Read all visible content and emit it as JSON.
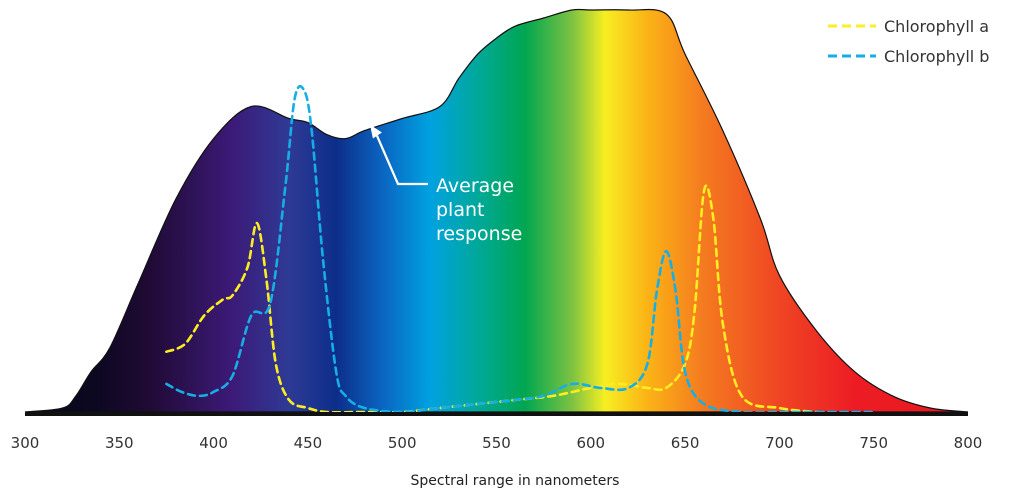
{
  "chart_data": {
    "type": "area",
    "xlabel": "Spectral range in nanometers",
    "ylabel": "",
    "xlim": [
      300,
      800
    ],
    "ylim": [
      0,
      1
    ],
    "grid": false,
    "x_ticks": [
      "300",
      "350",
      "400",
      "450",
      "500",
      "550",
      "600",
      "650",
      "700",
      "750",
      "800"
    ],
    "legend_position": "top-right",
    "annotation": {
      "lines": [
        "Average",
        "plant",
        "response"
      ],
      "points_to_x": 485,
      "points_to_y": 0.73
    },
    "series": [
      {
        "name": "",
        "kind": "filled-area",
        "x": [
          300,
          320,
          327,
          335,
          345,
          360,
          380,
          400,
          420,
          440,
          450,
          460,
          470,
          480,
          500,
          520,
          530,
          540,
          550,
          560,
          575,
          590,
          600,
          620,
          640,
          650,
          670,
          690,
          700,
          720,
          740,
          760,
          780,
          800
        ],
        "y": [
          0.0,
          0.01,
          0.04,
          0.1,
          0.16,
          0.32,
          0.53,
          0.68,
          0.76,
          0.73,
          0.72,
          0.69,
          0.68,
          0.7,
          0.73,
          0.76,
          0.83,
          0.89,
          0.93,
          0.96,
          0.98,
          1.0,
          1.0,
          1.0,
          0.99,
          0.89,
          0.7,
          0.48,
          0.34,
          0.2,
          0.1,
          0.04,
          0.01,
          0.0
        ]
      },
      {
        "name": "Chlorophyll a",
        "kind": "line",
        "color": "#fdee21",
        "x": [
          375,
          385,
          395,
          405,
          410,
          418,
          423,
          428,
          433,
          440,
          450,
          460,
          480,
          500,
          520,
          540,
          560,
          580,
          600,
          615,
          630,
          640,
          650,
          655,
          660,
          665,
          670,
          680,
          700,
          720
        ],
        "y": [
          0.15,
          0.17,
          0.24,
          0.28,
          0.29,
          0.36,
          0.47,
          0.33,
          0.12,
          0.03,
          0.01,
          0.0,
          0.0,
          0.0,
          0.01,
          0.02,
          0.03,
          0.04,
          0.06,
          0.07,
          0.06,
          0.06,
          0.12,
          0.25,
          0.55,
          0.48,
          0.22,
          0.04,
          0.01,
          0.0
        ]
      },
      {
        "name": "Chlorophyll b",
        "kind": "line",
        "color": "#16aee4",
        "x": [
          375,
          383,
          392,
          400,
          410,
          420,
          430,
          438,
          443,
          448,
          452,
          458,
          465,
          470,
          480,
          500,
          520,
          540,
          560,
          575,
          590,
          605,
          620,
          630,
          635,
          640,
          645,
          650,
          660,
          680,
          700,
          720,
          750
        ],
        "y": [
          0.07,
          0.05,
          0.04,
          0.05,
          0.09,
          0.24,
          0.27,
          0.56,
          0.78,
          0.8,
          0.7,
          0.38,
          0.1,
          0.04,
          0.01,
          0.0,
          0.01,
          0.02,
          0.03,
          0.04,
          0.07,
          0.06,
          0.06,
          0.12,
          0.3,
          0.4,
          0.3,
          0.1,
          0.02,
          0.0,
          0.0,
          0.0,
          0.0
        ]
      }
    ]
  }
}
